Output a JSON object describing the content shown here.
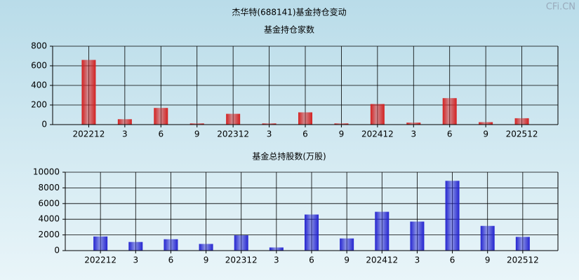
{
  "title": "杰华特(688141)基金持仓变动",
  "watermark": "CFi.CN",
  "chart_data": [
    {
      "type": "bar",
      "title": "基金持仓家数",
      "categories": [
        "202212",
        "3",
        "6",
        "9",
        "202312",
        "3",
        "6",
        "9",
        "202412",
        "3",
        "6",
        "9",
        "202512"
      ],
      "values": [
        660,
        55,
        170,
        12,
        110,
        12,
        125,
        12,
        210,
        20,
        270,
        25,
        65
      ],
      "color": "#d42020",
      "ylim": [
        0,
        800
      ],
      "yticks": [
        0,
        200,
        400,
        600,
        800
      ],
      "grid": true
    },
    {
      "type": "bar",
      "title": "基金总持股数(万股)",
      "categories": [
        "202212",
        "3",
        "6",
        "9",
        "202312",
        "3",
        "6",
        "9",
        "202412",
        "3",
        "6",
        "9",
        "202512"
      ],
      "values": [
        1800,
        1100,
        1450,
        850,
        1950,
        400,
        4600,
        1550,
        4950,
        3700,
        8900,
        3150,
        1750
      ],
      "color": "#2424d0",
      "ylim": [
        0,
        10000
      ],
      "yticks": [
        0,
        2000,
        4000,
        6000,
        8000,
        10000
      ],
      "grid": true
    }
  ]
}
